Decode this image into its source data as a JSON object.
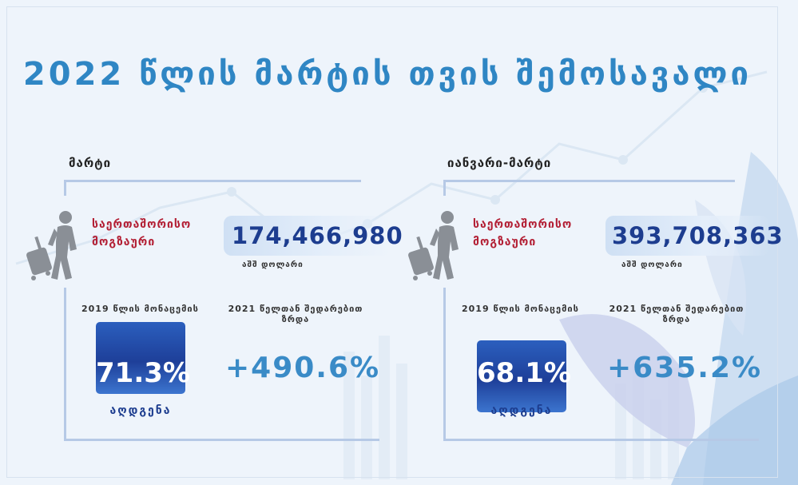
{
  "title": "2022 წლის მარტის თვის შემოსავალი",
  "panels": [
    {
      "period": "მარტი",
      "visitor_label_line1": "საერთაშორისო",
      "visitor_label_line2": "მოგზაური",
      "amount": "174,466,980",
      "currency": "აშშ დოლარი",
      "recovery_heading": "2019 წლის მონაცემის",
      "recovery_value": "71.3%",
      "recovery_label": "აღდგენა",
      "growth_heading_line1": "2021 წელთან შედარებით",
      "growth_heading_line2": "ზრდა",
      "growth_value": "+490.6%"
    },
    {
      "period": "იანვარი-მარტი",
      "visitor_label_line1": "საერთაშორისო",
      "visitor_label_line2": "მოგზაური",
      "amount": "393,708,363",
      "currency": "აშშ დოლარი",
      "recovery_heading": "2019 წლის მონაცემის",
      "recovery_value": "68.1%",
      "recovery_label": "აღდგენა",
      "growth_heading_line1": "2021 წელთან შედარებით",
      "growth_heading_line2": "ზრდა",
      "growth_value": "+635.2%"
    }
  ],
  "colors": {
    "title": "#2f86c4",
    "accent_red": "#b32035",
    "amount_blue": "#1d3d8f",
    "growth_blue": "#3a8bc7",
    "frame": "#b6c9e6"
  },
  "icons": [
    "traveler-with-suitcase-icon"
  ]
}
